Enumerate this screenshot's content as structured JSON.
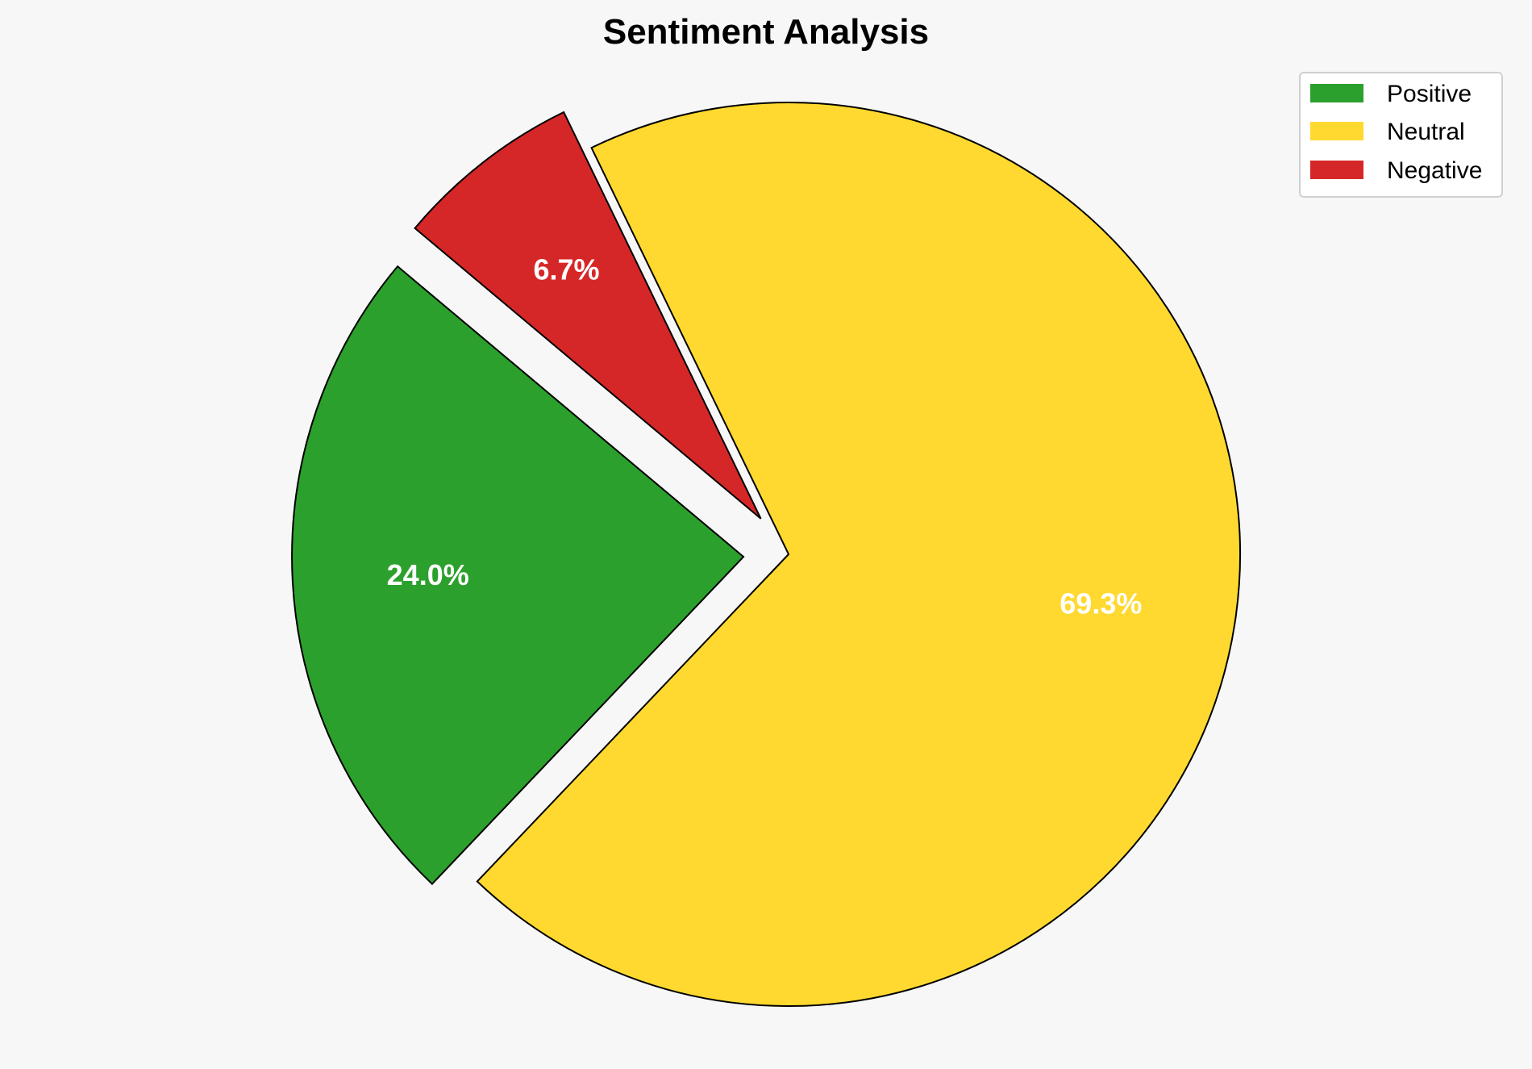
{
  "chart_data": {
    "type": "pie",
    "title": "Sentiment Analysis",
    "categories": [
      "Positive",
      "Neutral",
      "Negative"
    ],
    "values": [
      24.0,
      69.3,
      6.7
    ],
    "labels": [
      "24.0%",
      "69.3%",
      "6.7%"
    ],
    "colors": [
      "#2ca02c",
      "#ffd92f",
      "#d62728"
    ],
    "exploded": [
      true,
      false,
      true
    ],
    "legend": {
      "position": "top-right",
      "entries": [
        "Positive",
        "Neutral",
        "Negative"
      ]
    },
    "background": "#f7f7f7"
  }
}
